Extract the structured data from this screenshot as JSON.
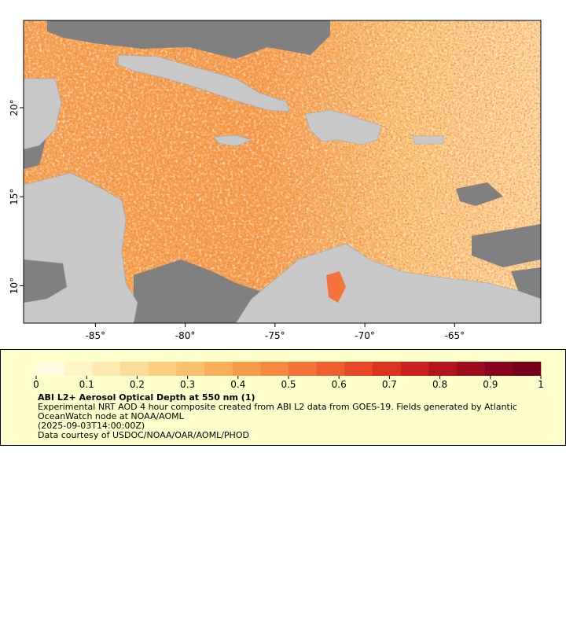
{
  "map": {
    "xlim": [
      -89,
      -60.2
    ],
    "ylim": [
      7.9,
      24.9
    ],
    "xticks": [
      {
        "value": -85,
        "label": "-85°"
      },
      {
        "value": -80,
        "label": "-80°"
      },
      {
        "value": -75,
        "label": "-75°"
      },
      {
        "value": -70,
        "label": "-70°"
      },
      {
        "value": -65,
        "label": "-65°"
      }
    ],
    "yticks": [
      {
        "value": 10,
        "label": "10°"
      },
      {
        "value": 15,
        "label": "15°"
      },
      {
        "value": 20,
        "label": "20°"
      }
    ]
  },
  "colorbar": {
    "range": [
      0,
      1
    ],
    "ticks": [
      0,
      0.1,
      0.2,
      0.3,
      0.4,
      0.5,
      0.6,
      0.7,
      0.8,
      0.9,
      1
    ],
    "colors": [
      "#fffbe0",
      "#fff3c8",
      "#ffe9b0",
      "#fddc98",
      "#fccf80",
      "#fbc06b",
      "#f9b05a",
      "#f79d4a",
      "#f5893f",
      "#f27436",
      "#ee5e2e",
      "#e64827",
      "#da3421",
      "#c9211e",
      "#b3141d",
      "#9c0a1e",
      "#870420",
      "#78001f"
    ]
  },
  "legend": {
    "title": "ABI L2+ Aerosol Optical Depth at 550 nm (1)",
    "description": "Experimental NRT AOD 4 hour composite created from ABI L2 data from GOES-19. Fields generated by Atlantic OceanWatch node at NOAA/AOML",
    "time": "(2025-09-03T14:00:00Z)",
    "credit": "Data courtesy of USDOC/NOAA/OAR/AOML/PHOD"
  }
}
